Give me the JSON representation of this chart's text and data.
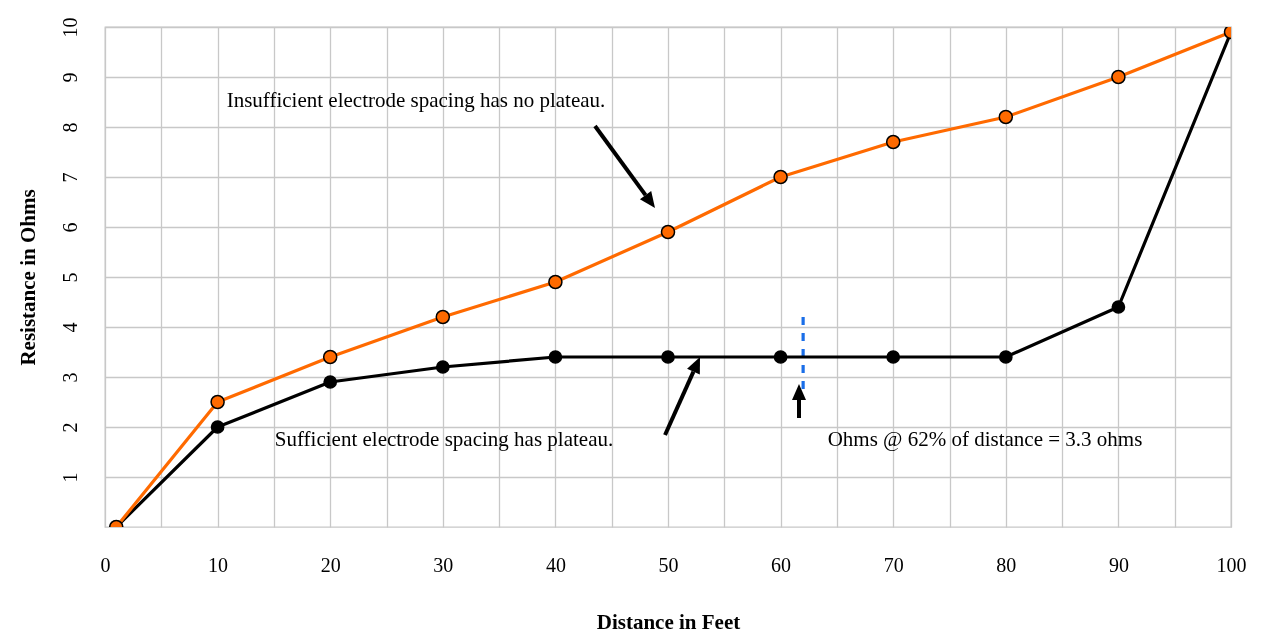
{
  "chart_data": {
    "type": "line",
    "xlabel": "Distance in Feet",
    "ylabel": "Resistance in Ohms",
    "x": [
      1,
      10,
      20,
      30,
      40,
      50,
      60,
      70,
      80,
      90,
      100
    ],
    "series": [
      {
        "color": "#ff6a00",
        "marker": "circle",
        "values": [
          0,
          2.5,
          3.4,
          4.2,
          4.9,
          5.9,
          7.0,
          7.7,
          8.2,
          9.0,
          9.9
        ]
      },
      {
        "color": "#000000",
        "marker": "circle",
        "values": [
          0,
          2.0,
          2.9,
          3.2,
          3.4,
          3.4,
          3.4,
          3.4,
          3.4,
          4.4,
          9.9
        ]
      },
      {
        "color": "#1a6ee8",
        "line_style": "dashed",
        "x": [
          62,
          62
        ],
        "values": [
          4.2,
          2.7
        ]
      }
    ],
    "xlim": [
      0,
      100
    ],
    "xticks": [
      0,
      {
        "value": 5,
        "label": null
      },
      10,
      {
        "value": 15,
        "label": null
      },
      20,
      {
        "value": 25,
        "label": null
      },
      30,
      {
        "value": 35,
        "label": null
      },
      40,
      {
        "value": 45,
        "label": null
      },
      50,
      {
        "value": 55,
        "label": null
      },
      60,
      {
        "value": 65,
        "label": null
      },
      70,
      {
        "value": 75,
        "label": null
      },
      80,
      {
        "value": 85,
        "label": null
      },
      90,
      {
        "value": 95,
        "label": null
      },
      100
    ],
    "ylim": [
      0,
      10
    ],
    "yticks": [
      1,
      2,
      3,
      4,
      5,
      6,
      7,
      8,
      9,
      10
    ],
    "grid": true,
    "annotations": [
      "Insufficient electrode spacing has no plateau.",
      "Sufficient electrode spacing has plateau.",
      "Ohms @ 62% of distance = 3.3 ohms"
    ]
  }
}
